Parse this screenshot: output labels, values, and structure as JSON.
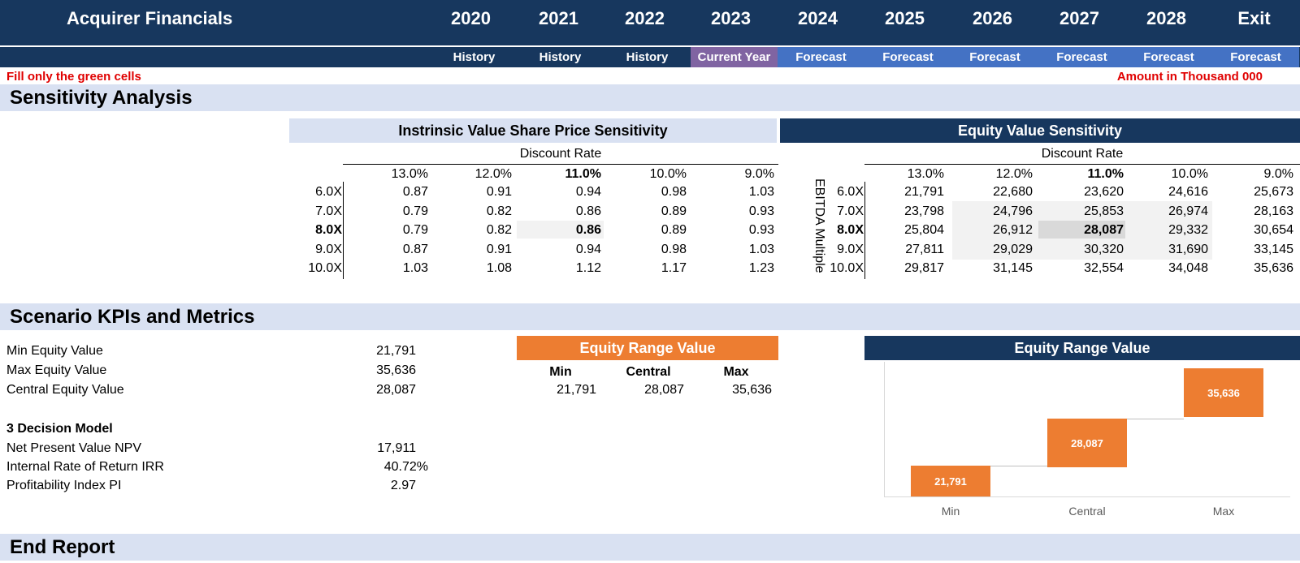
{
  "header": {
    "title": "Acquirer Financials",
    "years": [
      "2020",
      "2021",
      "2022",
      "2023",
      "2024",
      "2025",
      "2026",
      "2027",
      "2028",
      "Exit"
    ],
    "phases": [
      "History",
      "History",
      "History",
      "Current Year",
      "Forecast",
      "Forecast",
      "Forecast",
      "Forecast",
      "Forecast",
      "Forecast"
    ],
    "phase_colors": [
      "#17375e",
      "#17375e",
      "#17375e",
      "#8064a2",
      "#4472c4",
      "#4472c4",
      "#4472c4",
      "#4472c4",
      "#4472c4",
      "#4472c4"
    ]
  },
  "notes": {
    "fill_green": "Fill only the green cells",
    "amount_unit": "Amount in Thousand 000"
  },
  "sections": {
    "sensitivity": "Sensitivity Analysis",
    "scenario": "Scenario KPIs and Metrics",
    "end": "End Report"
  },
  "share_price": {
    "title": "Instrinsic Value Share Price Sensitivity",
    "col_axis": "Discount Rate",
    "columns": [
      "13.0%",
      "12.0%",
      "11.0%",
      "10.0%",
      "9.0%"
    ],
    "rows": [
      "6.0X",
      "7.0X",
      "8.0X",
      "9.0X",
      "10.0X"
    ],
    "values": [
      [
        "0.87",
        "0.91",
        "0.94",
        "0.98",
        "1.03"
      ],
      [
        "0.79",
        "0.82",
        "0.86",
        "0.89",
        "0.93"
      ],
      [
        "0.79",
        "0.82",
        "0.86",
        "0.89",
        "0.93"
      ],
      [
        "0.87",
        "0.91",
        "0.94",
        "0.98",
        "1.03"
      ],
      [
        "1.03",
        "1.08",
        "1.12",
        "1.17",
        "1.23"
      ]
    ]
  },
  "equity": {
    "title": "Equity Value Sensitivity",
    "col_axis": "Discount Rate",
    "row_axis": "EBITDA Multiple",
    "columns": [
      "13.0%",
      "12.0%",
      "11.0%",
      "10.0%",
      "9.0%"
    ],
    "rows": [
      "6.0X",
      "7.0X",
      "8.0X",
      "9.0X",
      "10.0X"
    ],
    "values": [
      [
        "21,791",
        "22,680",
        "23,620",
        "24,616",
        "25,673"
      ],
      [
        "23,798",
        "24,796",
        "25,853",
        "26,974",
        "28,163"
      ],
      [
        "25,804",
        "26,912",
        "28,087",
        "29,332",
        "30,654"
      ],
      [
        "27,811",
        "29,029",
        "30,320",
        "31,690",
        "33,145"
      ],
      [
        "29,817",
        "31,145",
        "32,554",
        "34,048",
        "35,636"
      ]
    ]
  },
  "kpis": [
    {
      "label": "Min Equity Value",
      "value": "21,791"
    },
    {
      "label": "Max Equity Value",
      "value": "35,636"
    },
    {
      "label": "Central Equity Value",
      "value": "28,087"
    }
  ],
  "decision": {
    "title": "3 Decision Model",
    "items": [
      {
        "label": "Net Present Value NPV",
        "value": "17,911"
      },
      {
        "label": "Internal Rate of Return IRR",
        "value": "40.72%"
      },
      {
        "label": "Profitability Index PI",
        "value": "2.97"
      }
    ]
  },
  "range_table": {
    "title": "Equity Range Value",
    "headers": [
      "Min",
      "Central",
      "Max"
    ],
    "values": [
      "21,791",
      "28,087",
      "35,636"
    ]
  },
  "chart_data": {
    "type": "bar",
    "title": "Equity Range Value",
    "categories": [
      "Min",
      "Central",
      "Max"
    ],
    "values": [
      21791,
      28087,
      35636
    ],
    "labels": [
      "21,791",
      "28,087",
      "35,636"
    ],
    "color": "#ed7d31",
    "legend": "none",
    "grid": false
  }
}
